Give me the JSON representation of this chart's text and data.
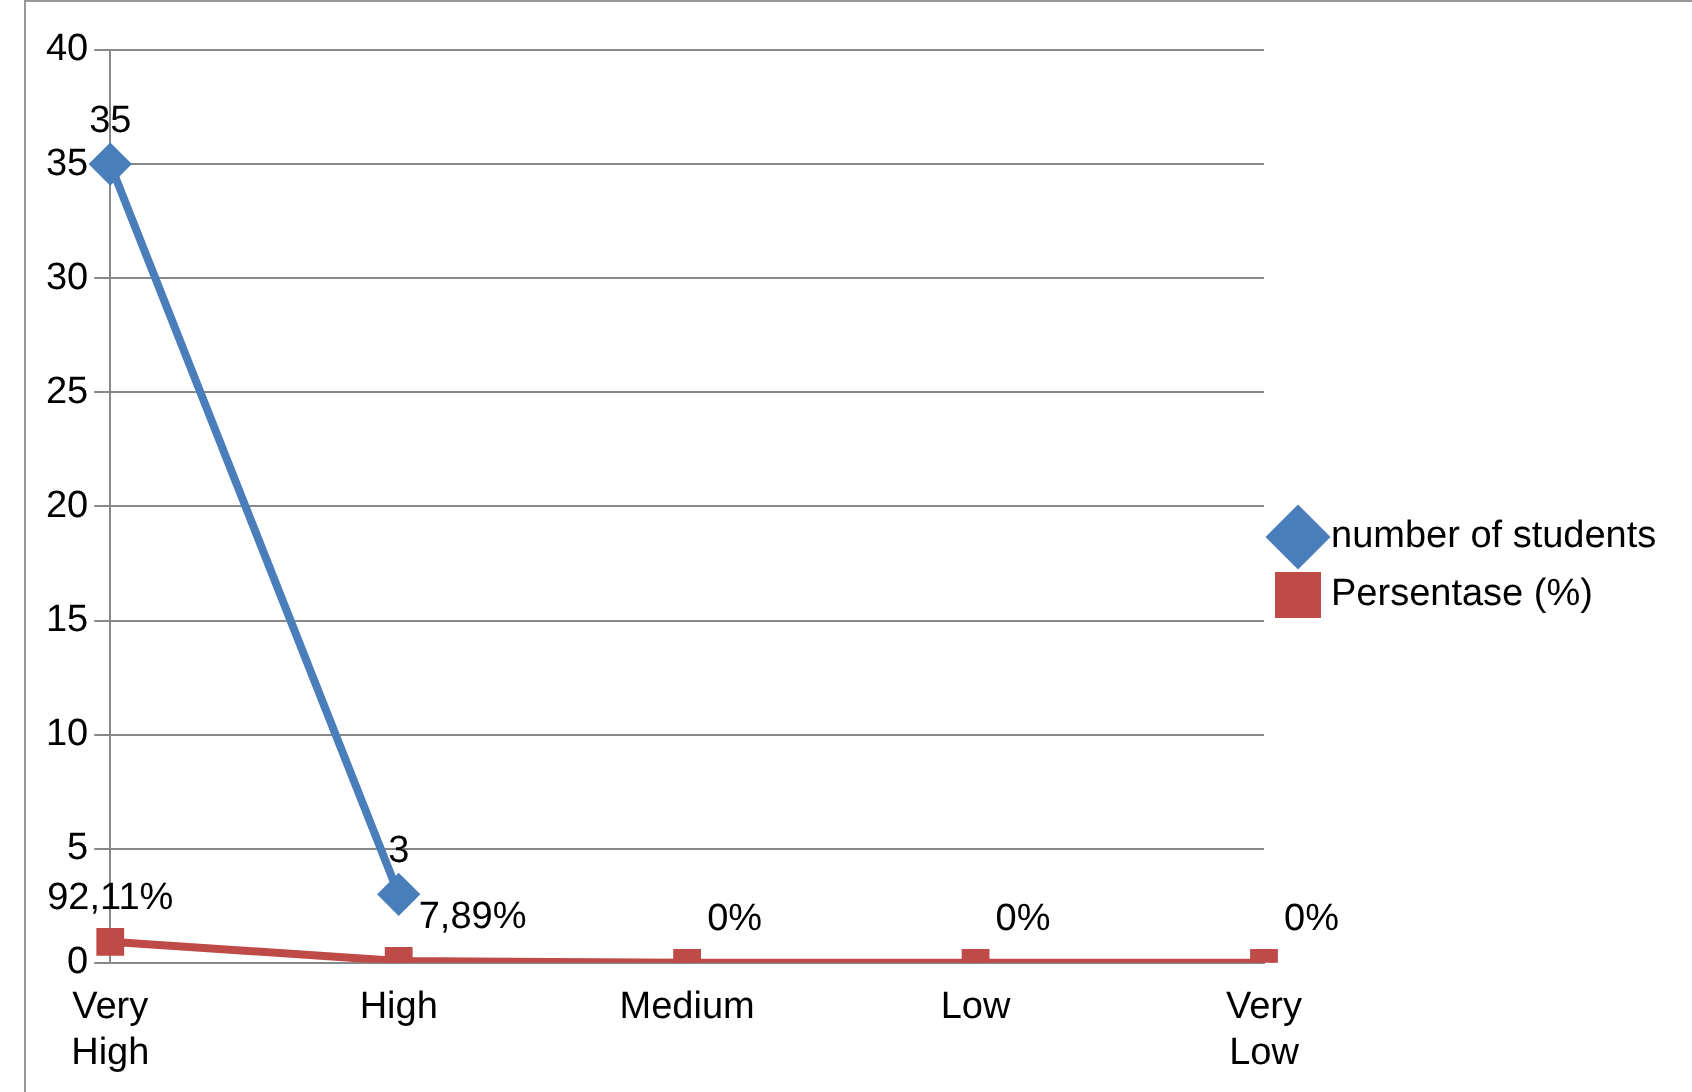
{
  "chart_data": {
    "type": "line",
    "categories": [
      "Very High",
      "High",
      "Medium",
      "Low",
      "Very Low"
    ],
    "series": [
      {
        "name": "number of students",
        "color": "#4a7ebb",
        "marker": "diamond",
        "values": [
          35,
          3,
          null,
          null,
          null
        ],
        "value_labels": [
          "35",
          "3",
          null,
          null,
          null
        ]
      },
      {
        "name": "Persentase (%)",
        "color": "#be4b48",
        "marker": "square",
        "values": [
          0.9211,
          0.0789,
          0,
          0,
          0
        ],
        "value_labels": [
          "92,11%",
          "7,89%",
          "0%",
          "0%",
          "0%"
        ]
      }
    ],
    "ylim": [
      0,
      40
    ],
    "yticks": [
      0,
      5,
      10,
      15,
      20,
      25,
      30,
      35,
      40
    ],
    "grid": "y",
    "legend": "right"
  }
}
